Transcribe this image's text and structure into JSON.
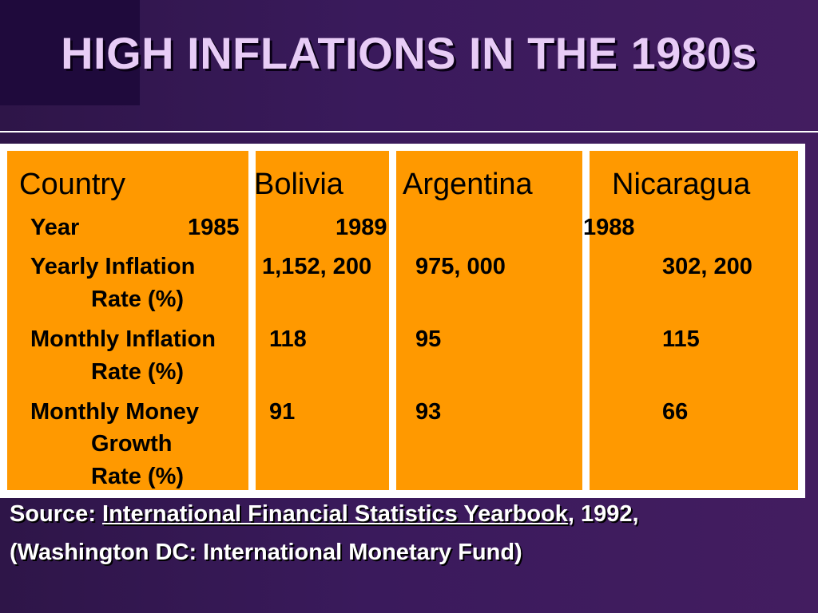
{
  "slide": {
    "title": "HIGH INFLATIONS IN THE 1980s"
  },
  "table": {
    "columns": [
      "Country",
      "Bolivia",
      "Argentina",
      "Nicaragua"
    ],
    "year_label": "Year",
    "years": [
      "1985",
      "1989",
      "1988"
    ],
    "rows": [
      {
        "label_lines": [
          "Yearly Inflation",
          "Rate (%)"
        ],
        "values": [
          "1,152, 200",
          "975, 000",
          "302, 200"
        ]
      },
      {
        "label_lines": [
          "Monthly Inflation",
          "Rate (%)"
        ],
        "values": [
          "118",
          "95",
          "115"
        ]
      },
      {
        "label_lines": [
          "Monthly Money",
          "Growth",
          "Rate (%)"
        ],
        "values": [
          "91",
          "93",
          "66"
        ]
      }
    ]
  },
  "source": {
    "prefix": "Source: ",
    "book": "International Financial Statistics Yearbook",
    "suffix": ", 1992,",
    "line2": "(Washington DC: International Monetary Fund)"
  },
  "colors": {
    "background": "#3a1a5c",
    "title": "#e8ccf6",
    "table_fill": "#ff9900",
    "table_border": "#ffffff"
  }
}
